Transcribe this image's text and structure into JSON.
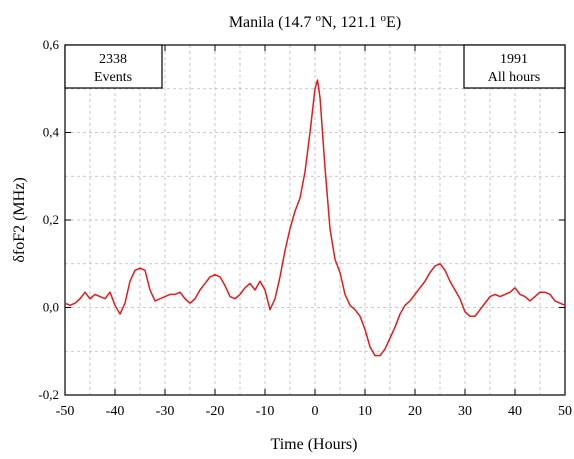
{
  "chart_data": {
    "type": "line",
    "title": "Manila (14.7 °N, 121.1 °E)",
    "title_parts": [
      "Manila (14.7 ",
      "o",
      "N, 121.1 ",
      "o",
      "E)"
    ],
    "xlabel": "Time (Hours)",
    "ylabel": "δfoF2 (MHz)",
    "xlim": [
      -50,
      50
    ],
    "ylim": [
      -0.2,
      0.6
    ],
    "x_ticks": [
      -50,
      -40,
      -30,
      -20,
      -10,
      0,
      10,
      20,
      30,
      40,
      50
    ],
    "x_tick_labels": [
      "-50",
      "-40",
      "-30",
      "-20",
      "-10",
      "0",
      "10",
      "20",
      "30",
      "40",
      "50"
    ],
    "y_ticks": [
      -0.2,
      0.0,
      0.2,
      0.4,
      0.6
    ],
    "y_tick_labels": [
      "-0,2",
      "0,0",
      "0,2",
      "0,4",
      "0,6"
    ],
    "grid": true,
    "annotations": {
      "left_box": [
        "2338",
        "Events"
      ],
      "right_box": [
        "1991",
        "All hours"
      ]
    },
    "series": [
      {
        "color": "#e8191c",
        "points": [
          [
            -50,
            0.01
          ],
          [
            -49,
            0.005
          ],
          [
            -48,
            0.01
          ],
          [
            -47,
            0.02
          ],
          [
            -46,
            0.035
          ],
          [
            -45,
            0.02
          ],
          [
            -44,
            0.03
          ],
          [
            -43,
            0.025
          ],
          [
            -42,
            0.02
          ],
          [
            -41,
            0.035
          ],
          [
            -40,
            0.005
          ],
          [
            -39,
            -0.015
          ],
          [
            -38,
            0.01
          ],
          [
            -37,
            0.06
          ],
          [
            -36,
            0.085
          ],
          [
            -35,
            0.09
          ],
          [
            -34,
            0.085
          ],
          [
            -33,
            0.04
          ],
          [
            -32,
            0.015
          ],
          [
            -31,
            0.02
          ],
          [
            -30,
            0.025
          ],
          [
            -29,
            0.03
          ],
          [
            -28,
            0.03
          ],
          [
            -27,
            0.035
          ],
          [
            -26,
            0.02
          ],
          [
            -25,
            0.01
          ],
          [
            -24,
            0.02
          ],
          [
            -23,
            0.04
          ],
          [
            -22,
            0.055
          ],
          [
            -21,
            0.07
          ],
          [
            -20,
            0.075
          ],
          [
            -19,
            0.07
          ],
          [
            -18,
            0.05
          ],
          [
            -17,
            0.025
          ],
          [
            -16,
            0.02
          ],
          [
            -15,
            0.03
          ],
          [
            -14,
            0.045
          ],
          [
            -13,
            0.055
          ],
          [
            -12,
            0.04
          ],
          [
            -11,
            0.06
          ],
          [
            -10,
            0.04
          ],
          [
            -9,
            -0.005
          ],
          [
            -8,
            0.02
          ],
          [
            -7,
            0.07
          ],
          [
            -6,
            0.13
          ],
          [
            -5,
            0.18
          ],
          [
            -4,
            0.22
          ],
          [
            -3,
            0.25
          ],
          [
            -2,
            0.31
          ],
          [
            -1,
            0.4
          ],
          [
            0,
            0.5
          ],
          [
            0.5,
            0.52
          ],
          [
            1,
            0.48
          ],
          [
            2,
            0.32
          ],
          [
            3,
            0.18
          ],
          [
            4,
            0.11
          ],
          [
            5,
            0.08
          ],
          [
            6,
            0.03
          ],
          [
            7,
            0.005
          ],
          [
            8,
            -0.005
          ],
          [
            9,
            -0.02
          ],
          [
            10,
            -0.05
          ],
          [
            11,
            -0.09
          ],
          [
            12,
            -0.11
          ],
          [
            13,
            -0.11
          ],
          [
            14,
            -0.095
          ],
          [
            15,
            -0.07
          ],
          [
            16,
            -0.045
          ],
          [
            17,
            -0.015
          ],
          [
            18,
            0.005
          ],
          [
            19,
            0.015
          ],
          [
            20,
            0.03
          ],
          [
            21,
            0.045
          ],
          [
            22,
            0.06
          ],
          [
            23,
            0.08
          ],
          [
            24,
            0.095
          ],
          [
            25,
            0.1
          ],
          [
            26,
            0.085
          ],
          [
            27,
            0.06
          ],
          [
            28,
            0.04
          ],
          [
            29,
            0.02
          ],
          [
            30,
            -0.01
          ],
          [
            31,
            -0.02
          ],
          [
            32,
            -0.02
          ],
          [
            33,
            -0.005
          ],
          [
            34,
            0.01
          ],
          [
            35,
            0.025
          ],
          [
            36,
            0.03
          ],
          [
            37,
            0.025
          ],
          [
            38,
            0.03
          ],
          [
            39,
            0.035
          ],
          [
            40,
            0.045
          ],
          [
            41,
            0.03
          ],
          [
            42,
            0.025
          ],
          [
            43,
            0.015
          ],
          [
            44,
            0.025
          ],
          [
            45,
            0.035
          ],
          [
            46,
            0.035
          ],
          [
            47,
            0.03
          ],
          [
            48,
            0.015
          ],
          [
            49,
            0.01
          ],
          [
            50,
            0.005
          ]
        ]
      }
    ]
  }
}
